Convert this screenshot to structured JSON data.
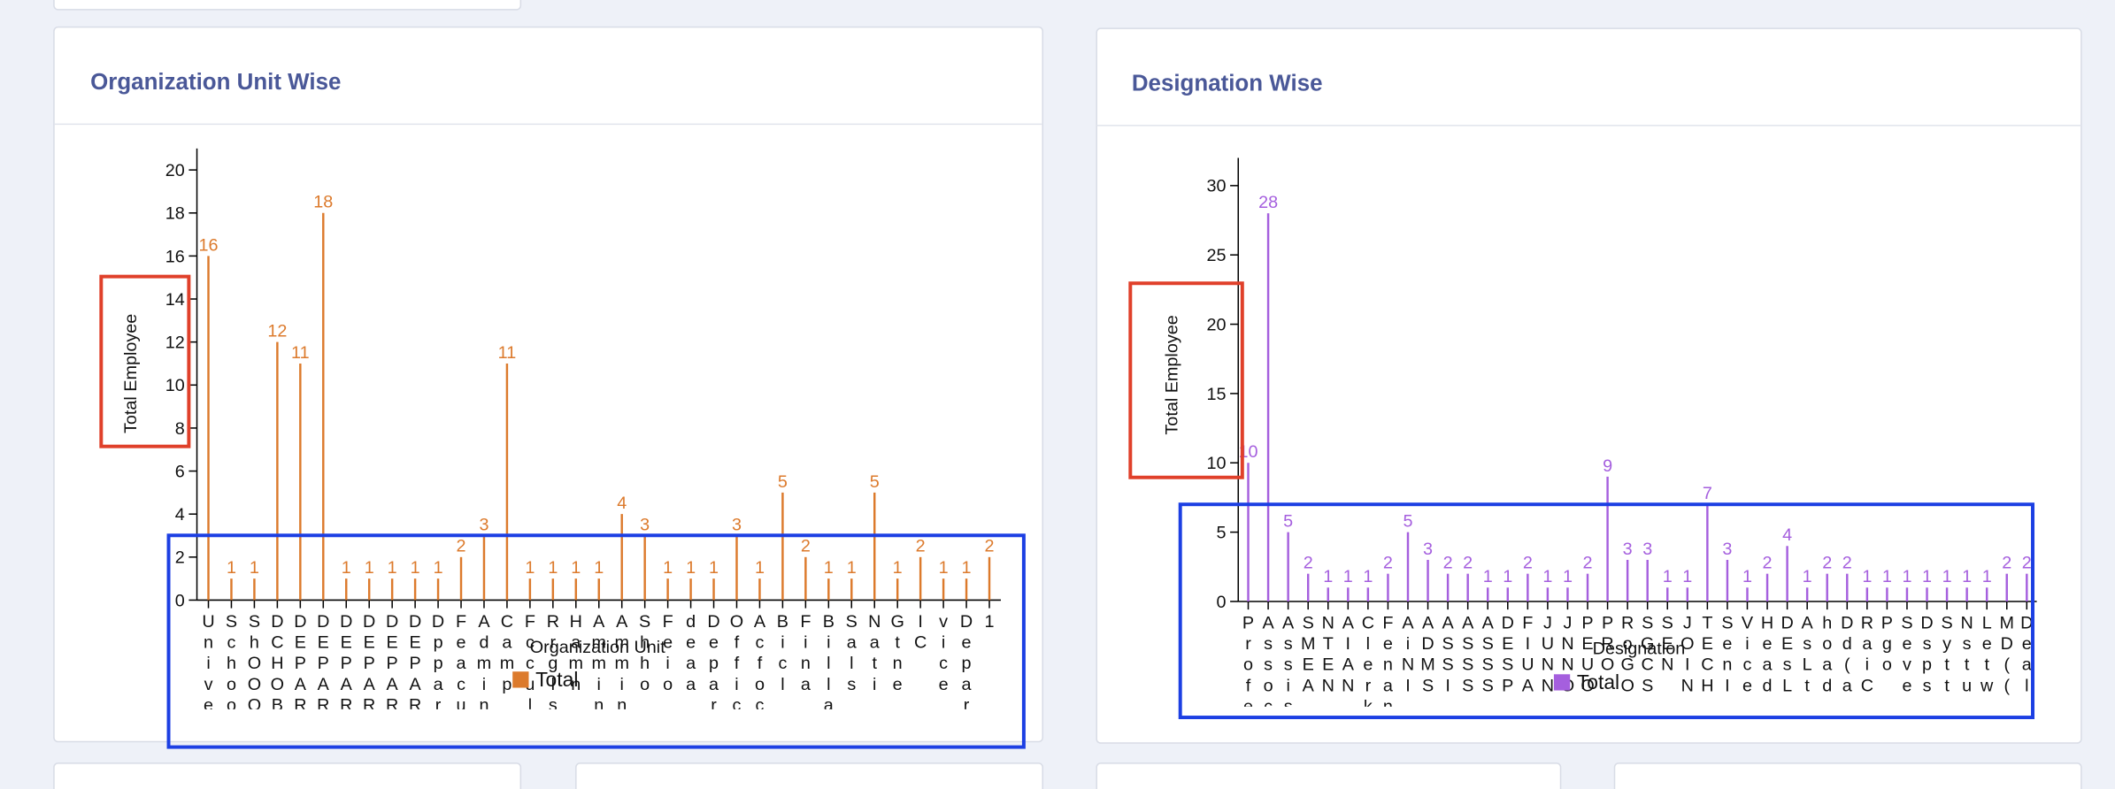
{
  "chart_data": [
    {
      "type": "lollipop",
      "title": "Organization Unit Wise",
      "y_label": "Total Employee",
      "x_label": "Organization Unit",
      "categories": [
        "Unive",
        "Schoo",
        "ShOOO",
        "DCHOB",
        "DEPAR",
        "DEPAR",
        "DEPAR",
        "DEPAR",
        "DEPAR",
        "DEPAR",
        "Dppar",
        "Feacu",
        "Admin",
        "Camp",
        "Fccul",
        "Rrgls",
        "Hamn",
        "Ammin",
        "Ammin",
        "Shho",
        "Feio",
        "deaa",
        "Depar",
        "Offic",
        "Acfoc",
        "Bicl",
        "Fina",
        "Billa",
        "Sals",
        "Nati",
        "Gtne",
        "IC",
        "vice",
        "Depar",
        "1"
      ],
      "series": [
        {
          "name": "Total",
          "color": "#dc7a2c",
          "values": [
            16,
            1,
            1,
            12,
            11,
            18,
            1,
            1,
            1,
            1,
            1,
            2,
            3,
            11,
            1,
            1,
            1,
            1,
            4,
            3,
            1,
            1,
            1,
            3,
            1,
            5,
            2,
            1,
            1,
            5,
            1,
            2,
            1,
            1,
            2
          ]
        }
      ],
      "ylim": [
        0,
        21
      ],
      "yticks": [
        0,
        2,
        4,
        6,
        8,
        10,
        12,
        14,
        16,
        18,
        20
      ],
      "legend": "bottom"
    },
    {
      "type": "lollipop",
      "title": "Designation Wise",
      "y_label": "Total Employee",
      "x_label": "Designation",
      "categories": [
        "Profe",
        "Assoc",
        "Assis",
        "SMEA",
        "NTEN",
        "AIAN",
        "Clerk",
        "Fenan",
        "AiNI",
        "ADMS",
        "ASSI",
        "ASSS",
        "ASSS",
        "DESP",
        "FIUA",
        "JUNN",
        "JNNO",
        "PEUO",
        "PRO",
        "RoGO",
        "SGCS",
        "SEN",
        "JOIN",
        "TECH",
        "SenI",
        "Vice",
        "Head",
        "DEsL",
        "AsLt",
        "hoad",
        "Dd(a",
        "RaiC",
        "Pgo",
        "Seve",
        "Dsps",
        "Sytt",
        "Nstu",
        "Letw",
        "MD((",
        "Deal"
      ],
      "series": [
        {
          "name": "Total",
          "color": "#a55fde",
          "values": [
            10,
            28,
            5,
            2,
            1,
            1,
            1,
            2,
            5,
            3,
            2,
            2,
            1,
            1,
            2,
            1,
            1,
            2,
            9,
            3,
            3,
            1,
            1,
            7,
            3,
            1,
            2,
            4,
            1,
            2,
            2,
            1,
            1,
            1,
            1,
            1,
            1,
            1,
            2,
            2
          ]
        }
      ],
      "ylim": [
        0,
        32
      ],
      "yticks": [
        0,
        5,
        10,
        15,
        20,
        25,
        30
      ],
      "legend": "bottom"
    }
  ]
}
